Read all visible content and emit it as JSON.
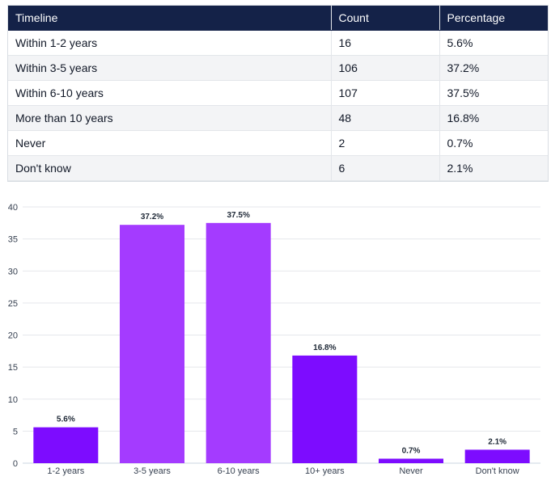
{
  "table": {
    "headers": [
      "Timeline",
      "Count",
      "Percentage"
    ],
    "rows": [
      [
        "Within 1-2 years",
        "16",
        "5.6%"
      ],
      [
        "Within 3-5 years",
        "106",
        "37.2%"
      ],
      [
        "Within 6-10 years",
        "107",
        "37.5%"
      ],
      [
        "More than 10 years",
        "48",
        "16.8%"
      ],
      [
        "Never",
        "2",
        "0.7%"
      ],
      [
        "Don't know",
        "6",
        "2.1%"
      ]
    ]
  },
  "chart_data": {
    "type": "bar",
    "title": "",
    "xlabel": "",
    "ylabel": "",
    "categories": [
      "1-2 years",
      "3-5 years",
      "6-10 years",
      "10+ years",
      "Never",
      "Don't know"
    ],
    "values": [
      5.6,
      37.2,
      37.5,
      16.8,
      0.7,
      2.1
    ],
    "data_labels": [
      "5.6%",
      "37.2%",
      "37.5%",
      "16.8%",
      "0.7%",
      "2.1%"
    ],
    "ylim": [
      0,
      40
    ],
    "yticks": [
      0,
      5,
      10,
      15,
      20,
      25,
      30,
      35,
      40
    ],
    "grid": true,
    "colors": [
      "#7d0cff",
      "#a43bff",
      "#a43bff",
      "#7d0cff",
      "#7d0cff",
      "#7d0cff"
    ]
  },
  "theme": {
    "header_background": "#142248",
    "header_text": "#ffffff",
    "grid_color": "#e5e7eb"
  }
}
